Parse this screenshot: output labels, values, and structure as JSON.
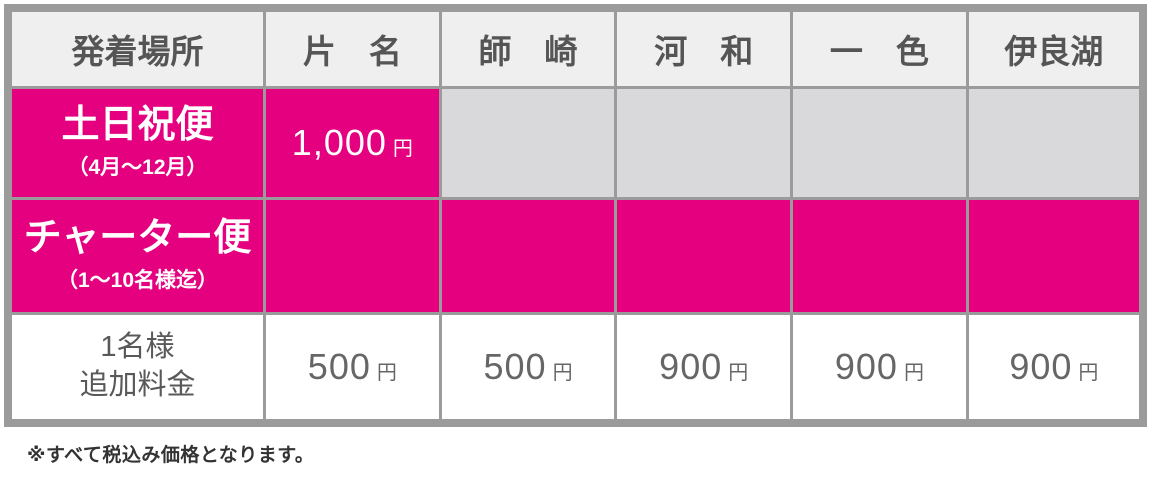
{
  "table": {
    "header": {
      "label": "発着場所",
      "columns": [
        "片　名",
        "師　崎",
        "河　和",
        "一　色",
        "伊良湖"
      ]
    },
    "rows": [
      {
        "label": "土日祝便",
        "sublabel": "（4月～12月）",
        "values": [
          "1,000",
          "",
          "",
          "",
          ""
        ]
      },
      {
        "label": "チャーター便",
        "sublabel": "（1～10名様迄）",
        "values": [
          "",
          "",
          "",
          "",
          ""
        ]
      },
      {
        "label_line1": "1名様",
        "label_line2": "追加料金",
        "values": [
          "500",
          "500",
          "900",
          "900",
          "900"
        ]
      }
    ],
    "currency_suffix": "円"
  },
  "footnote": "※すべて税込み価格となります。",
  "colors": {
    "accent_pink": "#E4007F",
    "empty_cell_gray": "#D9D9DB",
    "header_bg": "#EFEFEF",
    "grid_border": "#9B9B9B",
    "text_dark": "#555555",
    "text_value": "#666666"
  }
}
